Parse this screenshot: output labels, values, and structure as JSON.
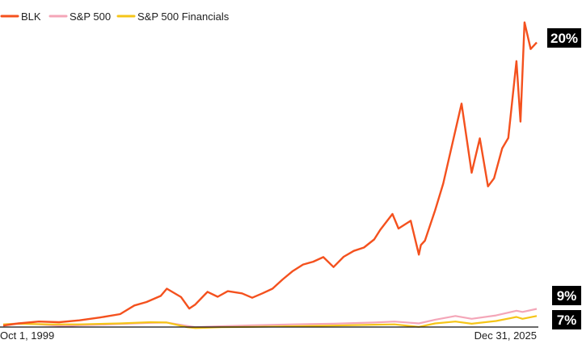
{
  "chart_data": {
    "type": "line",
    "title": "",
    "xlabel": "",
    "ylabel": "",
    "grid": false,
    "legend_position": "top-left",
    "x_range": [
      1999.75,
      2026.0
    ],
    "y_range": [
      0,
      100
    ],
    "x_tick_labels": [
      "Oct 1, 1999",
      "Dec 31, 2025"
    ],
    "series": [
      {
        "name": "BLK",
        "color": "#f4511e",
        "end_label": "20%",
        "x": [
          1999.75,
          2000.5,
          2001.5,
          2002.5,
          2003.5,
          2004.5,
          2005.5,
          2006.2,
          2006.8,
          2007.5,
          2007.8,
          2008.5,
          2008.9,
          2009.2,
          2009.8,
          2010.3,
          2010.8,
          2011.5,
          2012.0,
          2012.5,
          2013.0,
          2013.5,
          2014.0,
          2014.5,
          2015.0,
          2015.5,
          2016.0,
          2016.5,
          2017.0,
          2017.5,
          2018.0,
          2018.3,
          2018.9,
          2019.2,
          2019.8,
          2020.2,
          2020.3,
          2020.5,
          2021.0,
          2021.4,
          2021.9,
          2022.3,
          2022.8,
          2023.2,
          2023.6,
          2023.9,
          2024.3,
          2024.6,
          2025.0,
          2025.2,
          2025.4,
          2025.7,
          2026.0
        ],
        "y": [
          0.2,
          0.9,
          1.5,
          1.3,
          1.9,
          2.8,
          3.9,
          6.7,
          7.8,
          9.8,
          12.1,
          9.4,
          5.7,
          7.0,
          11.1,
          9.5,
          11.3,
          10.6,
          9.2,
          10.6,
          12.1,
          15.1,
          17.8,
          19.9,
          20.8,
          22.3,
          19.1,
          22.4,
          24.3,
          25.4,
          28.0,
          31.1,
          36.2,
          31.5,
          34.0,
          23.1,
          26.2,
          27.6,
          37.4,
          46.0,
          60.3,
          71.8,
          49.5,
          60.6,
          45.1,
          47.7,
          57.4,
          60.7,
          85.5,
          66.0,
          98.0,
          89.4,
          91.5
        ]
      },
      {
        "name": "S&P 500",
        "color": "#f4a6b8",
        "end_label": "9%",
        "x": [
          1999.75,
          2000.5,
          2001.5,
          2002.8,
          2003.5,
          2005.0,
          2007.0,
          2007.8,
          2009.2,
          2010.5,
          2012.0,
          2014.0,
          2016.0,
          2018.0,
          2019.0,
          2020.2,
          2021.0,
          2022.0,
          2022.8,
          2024.0,
          2025.0,
          2025.3,
          2026.0
        ],
        "y": [
          0.6,
          0.9,
          0.6,
          0.0,
          0.3,
          0.6,
          1.1,
          1.2,
          -0.3,
          0.0,
          0.3,
          0.6,
          0.8,
          1.2,
          1.5,
          0.9,
          2.1,
          3.3,
          2.4,
          3.5,
          5.0,
          4.6,
          5.6
        ]
      },
      {
        "name": "S&P 500 Financials",
        "color": "#f5c518",
        "end_label": "7%",
        "x": [
          1999.75,
          2000.5,
          2002.0,
          2003.5,
          2005.5,
          2007.0,
          2007.8,
          2008.8,
          2009.2,
          2010.5,
          2012.0,
          2014.0,
          2016.0,
          2018.0,
          2019.0,
          2020.2,
          2021.0,
          2022.0,
          2022.8,
          2024.0,
          2025.0,
          2025.3,
          2026.0
        ],
        "y": [
          0.6,
          0.8,
          0.6,
          0.6,
          0.9,
          1.3,
          1.2,
          -0.3,
          -0.6,
          -0.3,
          -0.2,
          0.0,
          0.2,
          0.5,
          0.6,
          -0.2,
          0.9,
          1.5,
          0.8,
          1.7,
          3.0,
          2.4,
          3.3
        ]
      }
    ]
  }
}
